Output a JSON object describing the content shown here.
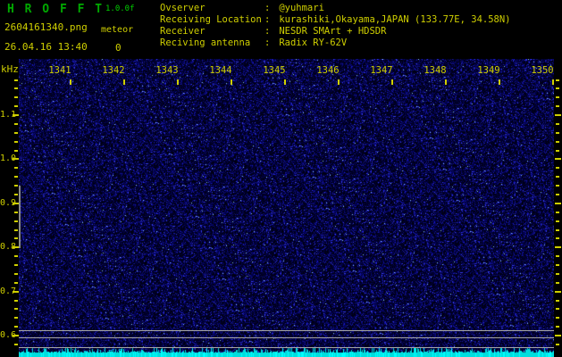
{
  "app": {
    "title": "H R O F F T",
    "version": "1.0.0f",
    "filename": "2604161340.png",
    "mode_label": "meteor",
    "meteor_count": "0",
    "datetime": "26.04.16 13:40"
  },
  "header": {
    "sep": ":",
    "rows": [
      {
        "label": "Ovserver",
        "value": "@yuhmari"
      },
      {
        "label": "Receiving Location",
        "value": "kurashiki,Okayama,JAPAN (133.77E, 34.58N)"
      },
      {
        "label": "Receiver",
        "value": "NESDR SMArt + HDSDR"
      },
      {
        "label": "Reciving antenna",
        "value": "Radix RY-62V"
      }
    ]
  },
  "axes": {
    "freq": {
      "unit": "kHz",
      "labels": [
        "1.1",
        "1.0",
        "0.9",
        "0.8",
        "0.7",
        "0.6"
      ]
    },
    "time": {
      "labels": [
        "1341",
        "1342",
        "1343",
        "1344",
        "1345",
        "1346",
        "1347",
        "1348",
        "1349",
        "1350"
      ]
    }
  },
  "spectrogram": {
    "description": "blue random noise, no meteor echoes",
    "reference_lines_kHz": [
      "0.62",
      "0.60",
      "0.58"
    ]
  },
  "colors": {
    "background": "#000000",
    "text_yellow": "#cfcf00",
    "title_green": "#00a800",
    "version_green": "#00d000",
    "noise_blue": "#0000c8",
    "band_cyan": "#00dede",
    "line_gray": "#a8a8a8"
  }
}
